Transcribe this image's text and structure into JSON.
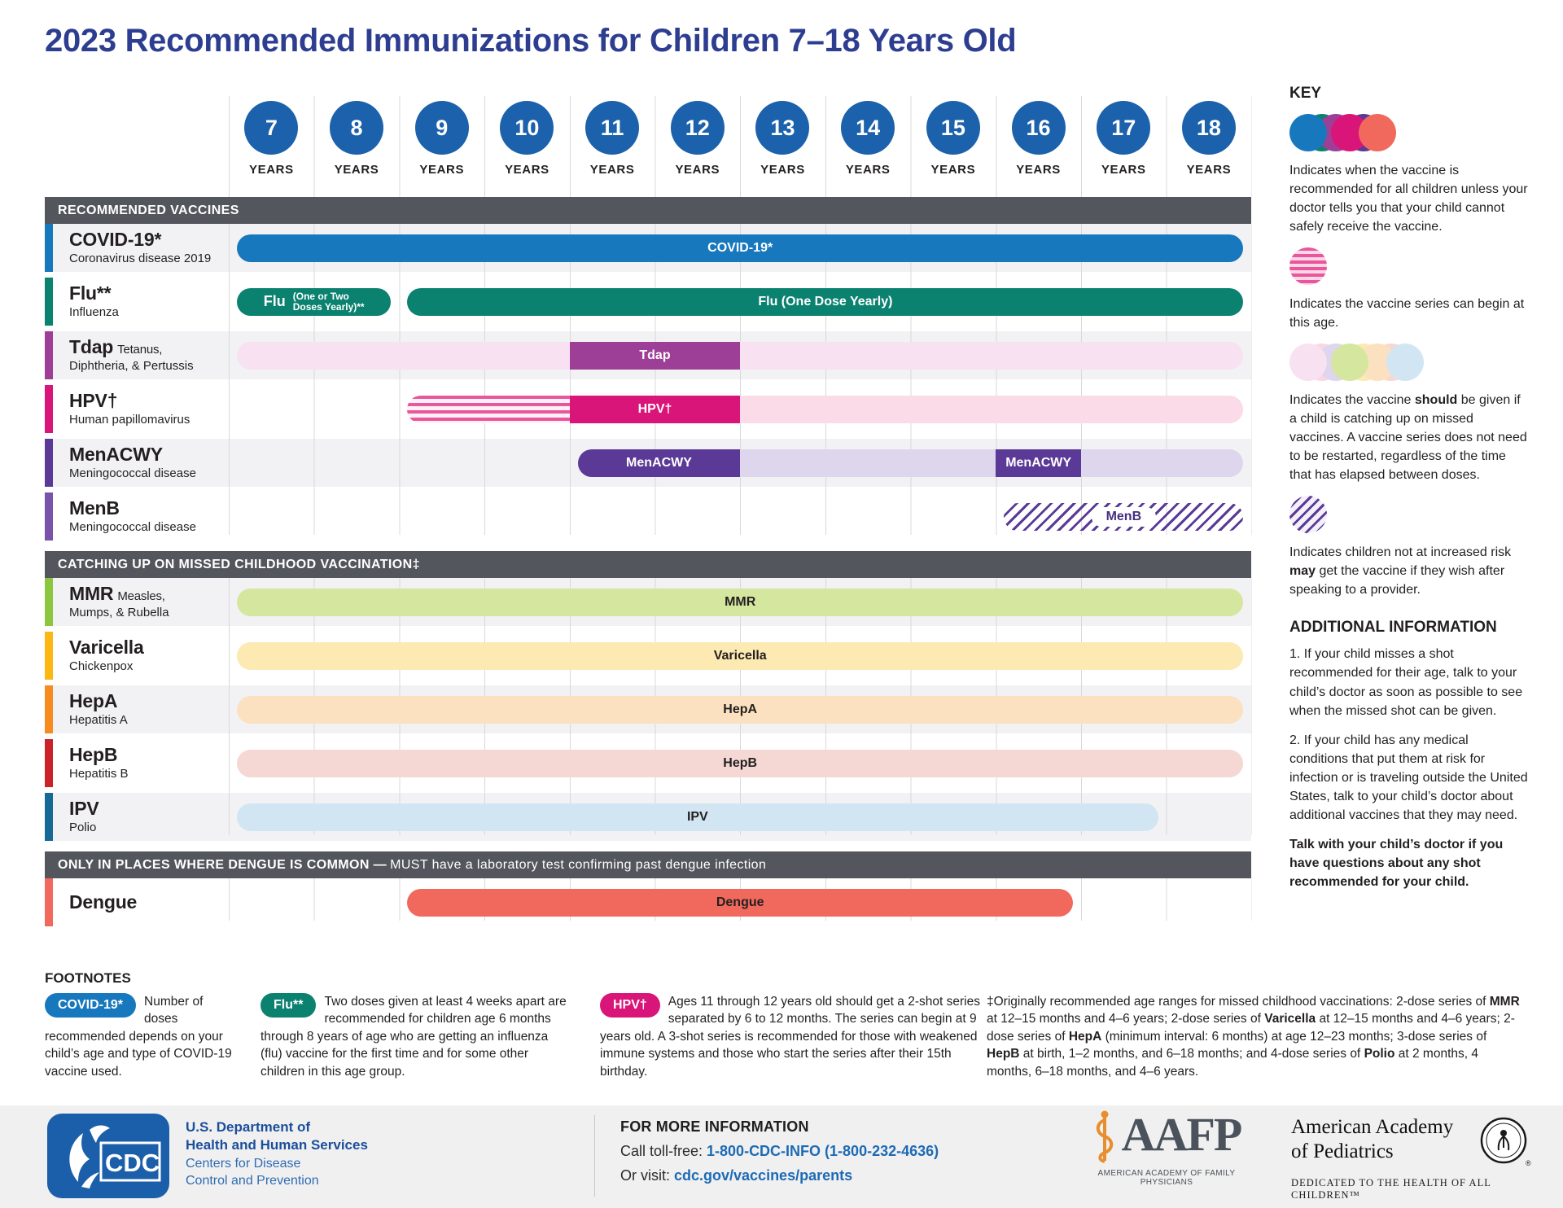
{
  "title": "2023 Recommended Immunizations for Children 7–18 Years Old",
  "ages": [
    {
      "value": "7",
      "label": "YEARS"
    },
    {
      "value": "8",
      "label": "YEARS"
    },
    {
      "value": "9",
      "label": "YEARS"
    },
    {
      "value": "10",
      "label": "YEARS"
    },
    {
      "value": "11",
      "label": "YEARS"
    },
    {
      "value": "12",
      "label": "YEARS"
    },
    {
      "value": "13",
      "label": "YEARS"
    },
    {
      "value": "14",
      "label": "YEARS"
    },
    {
      "value": "15",
      "label": "YEARS"
    },
    {
      "value": "16",
      "label": "YEARS"
    },
    {
      "value": "17",
      "label": "YEARS"
    },
    {
      "value": "18",
      "label": "YEARS"
    }
  ],
  "colors": {
    "title_blue": "#2d3e91",
    "age_circle_blue": "#1b61ab",
    "section_header_gray": "#53565c",
    "covid_blue": "#1878be",
    "flu_teal": "#0b8170",
    "tdap_purple": "#9d3f97",
    "tdap_light": "#f8e1f0",
    "hpv_magenta": "#da1579",
    "hpv_light": "#fadbe7",
    "menacwy_purple": "#5a3a96",
    "menacwy_light": "#ddd6ec",
    "mmr_green": "#d5e69f",
    "varicella_yellow": "#fdeab2",
    "hepa_orange": "#fce1c0",
    "hepb_red_light": "#f5d8d3",
    "ipv_blue_light": "#d2e5f3",
    "dengue_salmon": "#f1695d",
    "link_blue": "#1d6ab4"
  },
  "chart": {
    "sections": [
      {
        "id": "recommended",
        "header": [
          {
            "t": "RECOMMENDED VACCINES",
            "b": true
          }
        ],
        "rows": [
          {
            "id": "covid19",
            "accent": "#1878be",
            "name": "COVID-19*",
            "subtitle": "Coronavirus disease 2019",
            "segments": [
              {
                "from": 7,
                "to": 18,
                "style": "solid",
                "fill": "#1878be",
                "label": "COVID-19*",
                "round": "both"
              }
            ]
          },
          {
            "id": "flu",
            "accent": "#0b8170",
            "name": "Flu**",
            "subtitle": "Influenza",
            "segments": [
              {
                "from": 7,
                "to": 8,
                "style": "solid",
                "fill": "#0b8170",
                "label_main": "Flu",
                "label_small": [
                  "(One or Two",
                  "Doses Yearly)**"
                ],
                "round": "both"
              },
              {
                "from": 9,
                "to": 18,
                "style": "solid",
                "fill": "#0b8170",
                "label": "Flu (One Dose Yearly)",
                "round": "both"
              }
            ]
          },
          {
            "id": "tdap",
            "accent": "#9d3f97",
            "name": "Tdap",
            "name_suffix": "Tetanus,",
            "subtitle": "Diphtheria, & Pertussis",
            "segments": [
              {
                "from": 7,
                "to": 18,
                "style": "light",
                "fill": "#f8e1f0",
                "round": "both"
              },
              {
                "from": 11,
                "to": 12,
                "style": "solid",
                "fill": "#9d3f97",
                "label": "Tdap",
                "round": "none"
              }
            ]
          },
          {
            "id": "hpv",
            "accent": "#da1579",
            "name": "HPV†",
            "subtitle": "Human papillomavirus",
            "segments": [
              {
                "from": 9,
                "to": 10,
                "style": "striped",
                "round": "left"
              },
              {
                "from": 11,
                "to": 12,
                "style": "solid",
                "fill": "#da1579",
                "label": "HPV†",
                "round": "none"
              },
              {
                "from": 13,
                "to": 18,
                "style": "light",
                "fill": "#fadbe7",
                "round": "right"
              }
            ]
          },
          {
            "id": "menacwy",
            "accent": "#5a3a96",
            "name": "MenACWY",
            "subtitle": "Meningococcal disease",
            "segments": [
              {
                "from": 11,
                "to": 12,
                "style": "solid",
                "fill": "#5a3a96",
                "label": "MenACWY",
                "round": "left"
              },
              {
                "from": 13,
                "to": 15,
                "style": "light",
                "fill": "#ddd6ec",
                "round": "none"
              },
              {
                "from": 16,
                "to": 16,
                "style": "solid",
                "fill": "#5a3a96",
                "label": "MenACWY",
                "round": "none"
              },
              {
                "from": 17,
                "to": 18,
                "style": "light",
                "fill": "#ddd6ec",
                "round": "right"
              }
            ]
          },
          {
            "id": "menb",
            "accent": "#7a52aa",
            "name": "MenB",
            "subtitle": "Meningococcal disease",
            "segments": [
              {
                "from": 16,
                "to": 18,
                "style": "hatched",
                "pill": "MenB",
                "round": "both"
              }
            ]
          }
        ]
      },
      {
        "id": "catchup",
        "header": [
          {
            "t": "CATCHING UP ON MISSED CHILDHOOD VACCINATION‡",
            "b": true
          }
        ],
        "rows": [
          {
            "id": "mmr",
            "accent": "#8cc63f",
            "name": "MMR",
            "name_suffix": "Measles,",
            "subtitle": "Mumps, & Rubella",
            "segments": [
              {
                "from": 7,
                "to": 18,
                "style": "light",
                "fill": "#d5e69f",
                "label": "MMR",
                "round": "both"
              }
            ]
          },
          {
            "id": "varicella",
            "accent": "#fdb714",
            "name": "Varicella",
            "subtitle": "Chickenpox",
            "segments": [
              {
                "from": 7,
                "to": 18,
                "style": "light",
                "fill": "#fdeab2",
                "label": "Varicella",
                "round": "both"
              }
            ]
          },
          {
            "id": "hepa",
            "accent": "#f68b1f",
            "name": "HepA",
            "subtitle": "Hepatitis A",
            "segments": [
              {
                "from": 7,
                "to": 18,
                "style": "light",
                "fill": "#fce1c0",
                "label": "HepA",
                "round": "both"
              }
            ]
          },
          {
            "id": "hepb",
            "accent": "#cb2128",
            "name": "HepB",
            "subtitle": "Hepatitis B",
            "segments": [
              {
                "from": 7,
                "to": 18,
                "style": "light",
                "fill": "#f5d8d3",
                "label": "HepB",
                "round": "both"
              }
            ]
          },
          {
            "id": "ipv",
            "accent": "#176a96",
            "name": "IPV",
            "subtitle": "Polio",
            "segments": [
              {
                "from": 7,
                "to": 17,
                "style": "light",
                "fill": "#d2e5f3",
                "label": "IPV",
                "round": "both"
              }
            ]
          }
        ]
      },
      {
        "id": "dengue",
        "header": [
          {
            "t": "ONLY IN PLACES WHERE DENGUE IS COMMON — ",
            "b": true
          },
          {
            "t": "MUST have a laboratory test confirming past dengue infection",
            "b": false
          }
        ],
        "rows": [
          {
            "id": "dengue",
            "accent": "#f1695d",
            "name": "Dengue",
            "segments": [
              {
                "from": 9,
                "to": 16,
                "style": "solid",
                "fill": "#f1695d",
                "label": "Dengue",
                "dark_text": true,
                "round": "both"
              }
            ]
          }
        ]
      }
    ]
  },
  "key": {
    "heading": "KEY",
    "items": [
      {
        "icon": "solid-circles",
        "circles": [
          "#1878be",
          "#0b8170",
          "#9d3f97",
          "#da1579",
          "#5a3a96",
          "#f1695d"
        ],
        "text": [
          {
            "t": "Indicates when the vaccine is recommended for all children unless your doctor tells you that your child cannot safely receive the vaccine."
          }
        ]
      },
      {
        "icon": "striped-circle",
        "text": [
          {
            "t": "Indicates the vaccine series can begin at this age."
          }
        ]
      },
      {
        "icon": "light-circles",
        "circles": [
          "#f8e1f0",
          "#f9d7e3",
          "#ddd6ec",
          "#d5e69f",
          "#fdeab2",
          "#fce1c0",
          "#f5d8d3",
          "#d2e5f3"
        ],
        "text": [
          {
            "t": "Indicates the vaccine "
          },
          {
            "t": "should",
            "b": true
          },
          {
            "t": " be given if a child is catching up on missed vaccines. A vaccine series does not need to be restarted, regardless of the time that has elapsed between doses."
          }
        ]
      },
      {
        "icon": "hatched-circle",
        "text": [
          {
            "t": "Indicates children not at increased risk "
          },
          {
            "t": "may",
            "b": true
          },
          {
            "t": " get the vaccine if they wish after speaking to a provider."
          }
        ]
      }
    ],
    "additional_heading": "ADDITIONAL INFORMATION",
    "additional": [
      {
        "text": [
          {
            "t": "1. If your child misses a shot recommended for their age, talk to your child’s doctor as soon as possible to see when the missed shot can be given."
          }
        ]
      },
      {
        "text": [
          {
            "t": "2. If your child has any medical conditions that put them at risk for infection or is traveling outside the United States, talk to your child’s doctor about additional vaccines that they may need."
          }
        ]
      },
      {
        "text": [
          {
            "t": "Talk with your child’s doctor if you have questions about any shot recommended for your child.",
            "b": true
          }
        ]
      }
    ]
  },
  "footnotes": {
    "heading": "FOOTNOTES",
    "items": [
      {
        "pill": "COVID-19*",
        "pill_color": "#1878be",
        "text": [
          {
            "t": "Number of doses recommended depends on your child’s age and type of COVID-19 vaccine used."
          }
        ]
      },
      {
        "pill": "Flu**",
        "pill_color": "#0b8170",
        "text": [
          {
            "t": "Two doses given at least 4 weeks apart are recommended for children age 6 months through 8 years of age who are getting an influenza (flu) vaccine for the first time and for some other children in this age group."
          }
        ]
      },
      {
        "pill": "HPV†",
        "pill_color": "#da1579",
        "text": [
          {
            "t": "Ages 11 through 12 years old should get a 2-shot series separated by 6 to 12 months. The series can begin at 9 years old. A 3-shot series is recommended for those with weakened immune systems and those who start the series after their 15th birthday."
          }
        ]
      },
      {
        "text": [
          {
            "t": "‡Originally recommended age ranges for missed childhood vaccinations: 2-dose series of "
          },
          {
            "t": "MMR",
            "b": true
          },
          {
            "t": " at 12–15 months and 4–6 years; 2-dose series of "
          },
          {
            "t": "Varicella",
            "b": true
          },
          {
            "t": " at 12–15 months and 4–6 years; 2-dose series of "
          },
          {
            "t": "HepA",
            "b": true
          },
          {
            "t": " (minimum interval: 6 months) at age 12–23 months; 3-dose series of "
          },
          {
            "t": "HepB",
            "b": true
          },
          {
            "t": " at birth, 1–2 months, and 6–18 months; and 4-dose series of "
          },
          {
            "t": "Polio",
            "b": true
          },
          {
            "t": " at 2 months, 4 months, 6–18 months, and 4–6 years."
          }
        ]
      }
    ]
  },
  "footer": {
    "cdc_logo_text": "CDC",
    "hhs_line1": "U.S. Department of",
    "hhs_line2": "Health and Human Services",
    "cdc_line1": "Centers for Disease",
    "cdc_line2": "Control and Prevention",
    "info_heading": "FOR MORE INFORMATION",
    "call_prefix": "Call toll-free: ",
    "call_link": "1-800-CDC-INFO (1-800-232-4636)",
    "visit_prefix": "Or visit: ",
    "visit_link": "cdc.gov/vaccines/parents",
    "aafp_name": "AAFP",
    "aafp_caption": "AMERICAN ACADEMY OF FAMILY PHYSICIANS",
    "aap_line1": "American Academy",
    "aap_line2": "of Pediatrics",
    "aap_caption": "DEDICATED TO THE HEALTH OF ALL CHILDREN™"
  }
}
